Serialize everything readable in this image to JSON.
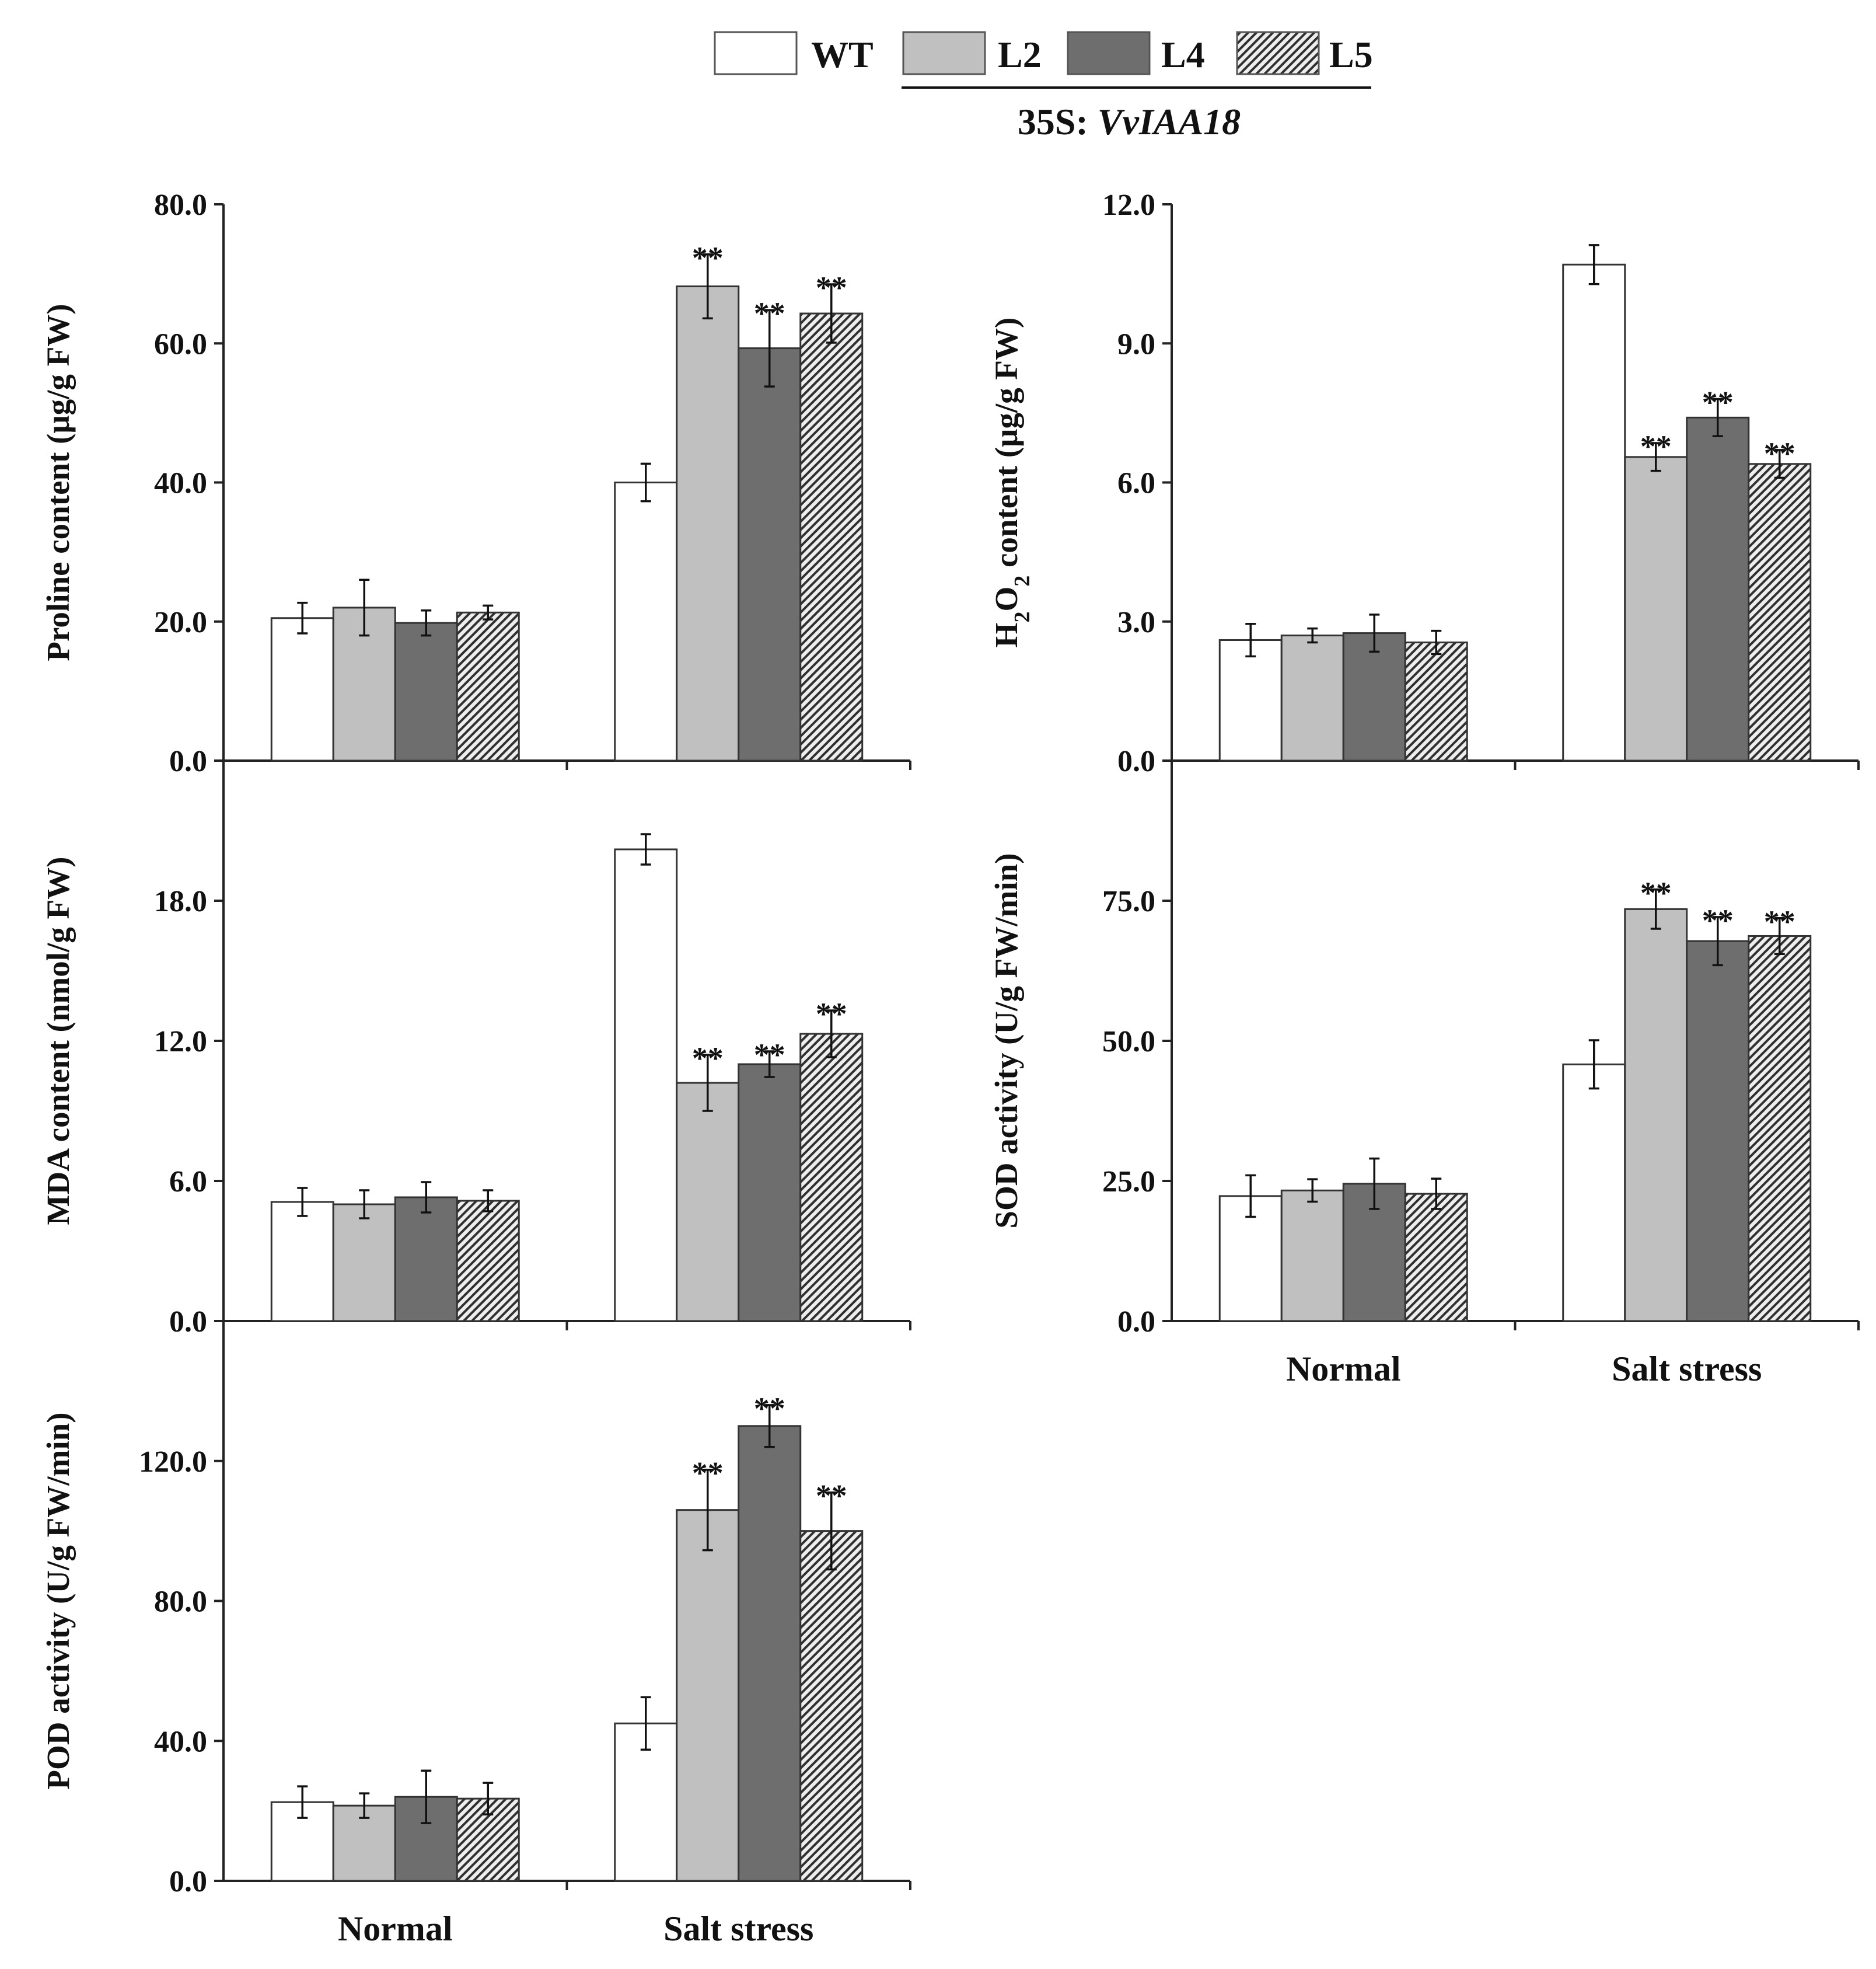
{
  "legend": {
    "entries": [
      {
        "label": "WT",
        "fill": "#ffffff"
      },
      {
        "label": "L2",
        "fill": "#c0c0c0"
      },
      {
        "label": "L4",
        "fill": "#6e6e6e"
      },
      {
        "label": "L5",
        "fill": "hatch"
      }
    ],
    "group_caption_prefix": "35S: ",
    "group_caption_gene": "VvIAA18"
  },
  "colors": {
    "WT": "#ffffff",
    "L2": "#c0c0c0",
    "L4": "#6e6e6e",
    "L5_base": "#eeeeee",
    "L5_hatch": "#303030",
    "outline": "#333333"
  },
  "chart_data": [
    {
      "id": "proline",
      "type": "bar",
      "ylabel": "Proline content (μg/g FW)",
      "ylim": [
        0,
        80
      ],
      "yticks": [
        "0.0",
        "20.0",
        "40.0",
        "60.0",
        "80.0"
      ],
      "categories": [
        "Normal",
        "Salt stress"
      ],
      "show_xlabels": false,
      "series": [
        {
          "name": "WT",
          "values": [
            20.5,
            40.0
          ],
          "errors": [
            2.2,
            2.7
          ],
          "marks": [
            "",
            ""
          ]
        },
        {
          "name": "L2",
          "values": [
            22.0,
            68.2
          ],
          "errors": [
            4.0,
            4.6
          ],
          "marks": [
            "",
            "**"
          ]
        },
        {
          "name": "L4",
          "values": [
            19.8,
            59.3
          ],
          "errors": [
            1.8,
            5.5
          ],
          "marks": [
            "",
            "**"
          ]
        },
        {
          "name": "L5",
          "values": [
            21.3,
            64.3
          ],
          "errors": [
            1.0,
            4.2
          ],
          "marks": [
            "",
            "**"
          ]
        }
      ]
    },
    {
      "id": "h2o2",
      "type": "bar",
      "ylabel": "H2O2 content (μg/g FW)",
      "ylabel_parts": [
        "H",
        "2",
        "O",
        "2",
        " content (μg/g FW)"
      ],
      "ylim": [
        0,
        12
      ],
      "yticks": [
        "0.0",
        "3.0",
        "6.0",
        "9.0",
        "12.0"
      ],
      "categories": [
        "Normal",
        "Salt stress"
      ],
      "show_xlabels": false,
      "series": [
        {
          "name": "WT",
          "values": [
            2.6,
            10.7
          ],
          "errors": [
            0.35,
            0.42
          ],
          "marks": [
            "",
            ""
          ]
        },
        {
          "name": "L2",
          "values": [
            2.7,
            6.55
          ],
          "errors": [
            0.15,
            0.3
          ],
          "marks": [
            "",
            "**"
          ]
        },
        {
          "name": "L4",
          "values": [
            2.75,
            7.4
          ],
          "errors": [
            0.4,
            0.4
          ],
          "marks": [
            "",
            "**"
          ]
        },
        {
          "name": "L5",
          "values": [
            2.55,
            6.4
          ],
          "errors": [
            0.25,
            0.3
          ],
          "marks": [
            "",
            "**"
          ]
        }
      ]
    },
    {
      "id": "mda",
      "type": "bar",
      "ylabel": "MDA content (nmol/g FW)",
      "ylim": [
        0,
        24
      ],
      "yticks": [
        "0.0",
        "6.0",
        "12.0",
        "18.0"
      ],
      "categories": [
        "Normal",
        "Salt stress"
      ],
      "show_xlabels": false,
      "series": [
        {
          "name": "WT",
          "values": [
            5.1,
            20.2
          ],
          "errors": [
            0.6,
            0.65
          ],
          "marks": [
            "",
            ""
          ]
        },
        {
          "name": "L2",
          "values": [
            5.0,
            10.2
          ],
          "errors": [
            0.6,
            1.2
          ],
          "marks": [
            "",
            "**"
          ]
        },
        {
          "name": "L4",
          "values": [
            5.3,
            11.0
          ],
          "errors": [
            0.65,
            0.55
          ],
          "marks": [
            "",
            "**"
          ]
        },
        {
          "name": "L5",
          "values": [
            5.15,
            12.3
          ],
          "errors": [
            0.45,
            1.0
          ],
          "marks": [
            "",
            "**"
          ]
        }
      ]
    },
    {
      "id": "sod",
      "type": "bar",
      "ylabel": "SOD activity (U/g FW/min)",
      "ylim": [
        0,
        100
      ],
      "yticks": [
        "0.0",
        "25.0",
        "50.0",
        "75.0"
      ],
      "categories": [
        "Normal",
        "Salt stress"
      ],
      "show_xlabels": true,
      "series": [
        {
          "name": "WT",
          "values": [
            22.3,
            45.8
          ],
          "errors": [
            3.7,
            4.3
          ],
          "marks": [
            "",
            ""
          ]
        },
        {
          "name": "L2",
          "values": [
            23.3,
            73.5
          ],
          "errors": [
            2.0,
            3.5
          ],
          "marks": [
            "",
            "**"
          ]
        },
        {
          "name": "L4",
          "values": [
            24.5,
            67.8
          ],
          "errors": [
            4.5,
            4.3
          ],
          "marks": [
            "",
            "**"
          ]
        },
        {
          "name": "L5",
          "values": [
            22.7,
            68.7
          ],
          "errors": [
            2.7,
            3.2
          ],
          "marks": [
            "",
            "**"
          ]
        }
      ]
    },
    {
      "id": "pod",
      "type": "bar",
      "ylabel": "POD activity (U/g FW/min)",
      "ylim": [
        0,
        160
      ],
      "yticks": [
        "0.0",
        "40.0",
        "80.0",
        "120.0"
      ],
      "categories": [
        "Normal",
        "Salt stress"
      ],
      "show_xlabels": true,
      "series": [
        {
          "name": "WT",
          "values": [
            22.5,
            45.0
          ],
          "errors": [
            4.5,
            7.5
          ],
          "marks": [
            "",
            ""
          ]
        },
        {
          "name": "L2",
          "values": [
            21.5,
            106.0
          ],
          "errors": [
            3.5,
            11.5
          ],
          "marks": [
            "",
            "**"
          ]
        },
        {
          "name": "L4",
          "values": [
            24.0,
            130.0
          ],
          "errors": [
            7.5,
            6.0
          ],
          "marks": [
            "",
            "**"
          ]
        },
        {
          "name": "L5",
          "values": [
            23.5,
            100.0
          ],
          "errors": [
            4.5,
            11.0
          ],
          "marks": [
            "",
            "**"
          ]
        }
      ]
    }
  ]
}
